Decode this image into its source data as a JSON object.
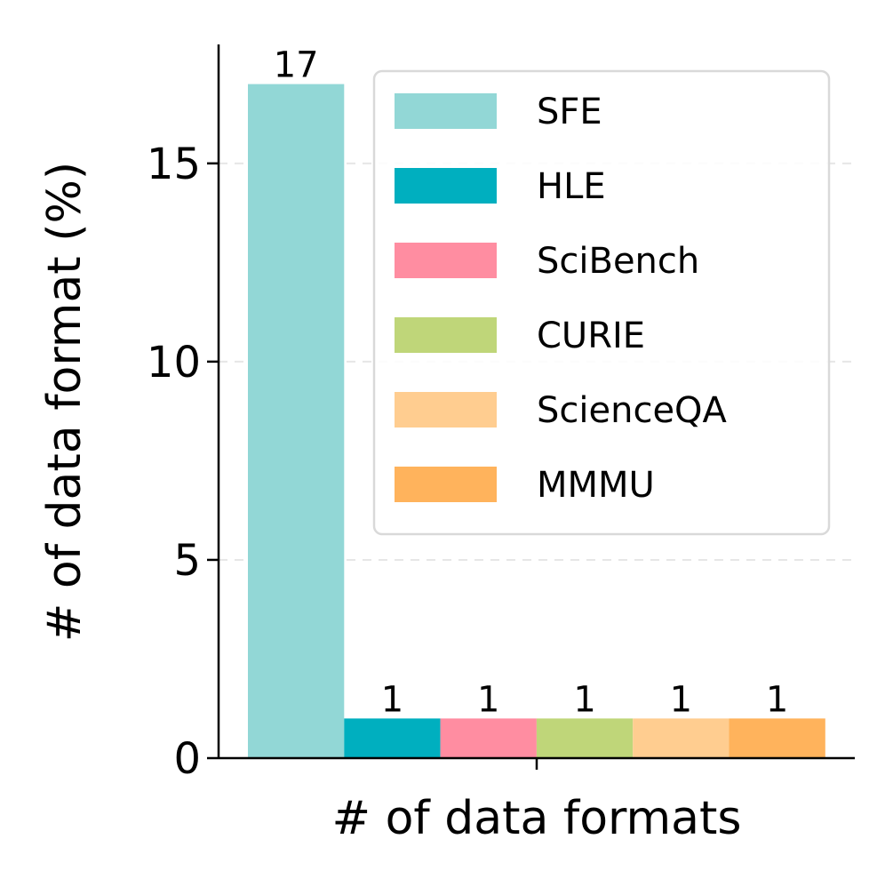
{
  "chart_data": {
    "type": "bar",
    "title": "",
    "xlabel": "# of data formats",
    "ylabel": "# of data format (%)",
    "ylim": [
      0,
      18
    ],
    "yticks": [
      0,
      5,
      10,
      15
    ],
    "grid": "y-dashed",
    "legend_position": "upper-right",
    "series": [
      {
        "name": "SFE",
        "value": 17,
        "label": "17",
        "color": "#92d7d6"
      },
      {
        "name": "HLE",
        "value": 1,
        "label": "1",
        "color": "#00afbf"
      },
      {
        "name": "SciBench",
        "value": 1,
        "label": "1",
        "color": "#ff8da1"
      },
      {
        "name": "CURIE",
        "value": 1,
        "label": "1",
        "color": "#bfd679"
      },
      {
        "name": "ScienceQA",
        "value": 1,
        "label": "1",
        "color": "#ffcd90"
      },
      {
        "name": "MMMU",
        "value": 1,
        "label": "1",
        "color": "#ffb35c"
      }
    ]
  }
}
